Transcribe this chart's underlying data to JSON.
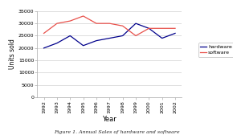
{
  "years": [
    1992,
    1993,
    1994,
    1995,
    1996,
    1997,
    1998,
    1999,
    2000,
    2001,
    2002
  ],
  "hardware": [
    20000,
    22000,
    25000,
    21000,
    23000,
    24000,
    25000,
    30000,
    28000,
    24000,
    26000
  ],
  "software": [
    26000,
    30000,
    31000,
    33000,
    30000,
    30000,
    29000,
    25000,
    28000,
    28000,
    28000
  ],
  "hardware_color": "#00008B",
  "software_color": "#E8504A",
  "title": "Figure 1. Annual Sales of hardware and software",
  "xlabel": "Year",
  "ylabel": "Units sold",
  "ylim": [
    0,
    35000
  ],
  "yticks": [
    0,
    5000,
    10000,
    15000,
    20000,
    25000,
    30000,
    35000
  ],
  "legend_labels": [
    "hardware",
    "software"
  ],
  "bg_color": "#ffffff"
}
